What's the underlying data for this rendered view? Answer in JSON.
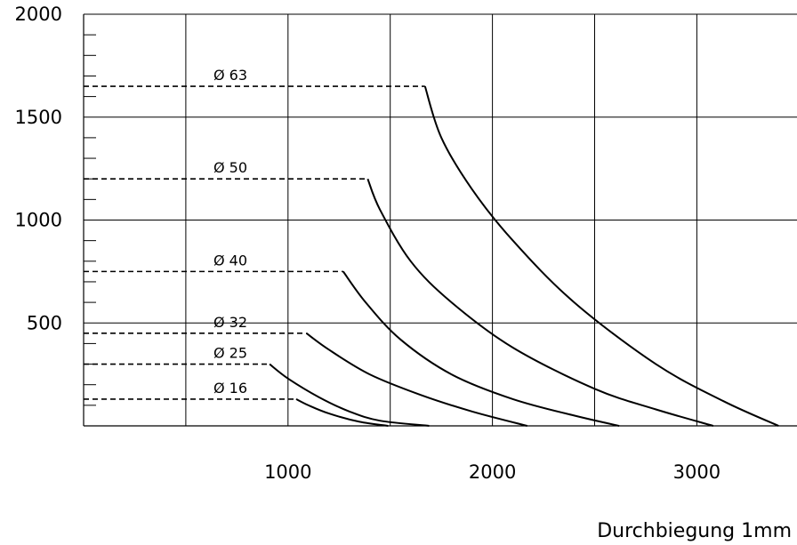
{
  "chart_data": {
    "type": "line",
    "xlabel": "Durchbiegung 1mm",
    "ylabel": "",
    "xlim": [
      0,
      3400
    ],
    "ylim": [
      0,
      2000
    ],
    "grid": true,
    "x_ticks": [
      {
        "value": 1000,
        "label": "1000"
      },
      {
        "value": 2000,
        "label": "2000"
      },
      {
        "value": 3000,
        "label": "3000"
      }
    ],
    "x_gridlines": [
      500,
      1000,
      1500,
      2000,
      2500,
      3000
    ],
    "y_ticks": [
      {
        "value": 500,
        "label": "500"
      },
      {
        "value": 1000,
        "label": "1000"
      },
      {
        "value": 1500,
        "label": "1500"
      },
      {
        "value": 2000,
        "label": "2000"
      }
    ],
    "y_minor_ticks": [
      100,
      200,
      300,
      400,
      600,
      700,
      800,
      900,
      1100,
      1200,
      1300,
      1400,
      1600,
      1700,
      1800,
      1900
    ],
    "series": [
      {
        "name": "Ø 63",
        "level": 1650,
        "points": [
          [
            1670,
            1650
          ],
          [
            1750,
            1400
          ],
          [
            1900,
            1150
          ],
          [
            2100,
            900
          ],
          [
            2400,
            600
          ],
          [
            2800,
            300
          ],
          [
            3130,
            120
          ],
          [
            3400,
            0
          ]
        ]
      },
      {
        "name": "Ø 50",
        "level": 1200,
        "points": [
          [
            1390,
            1200
          ],
          [
            1450,
            1050
          ],
          [
            1600,
            800
          ],
          [
            1800,
            600
          ],
          [
            2100,
            380
          ],
          [
            2500,
            180
          ],
          [
            2800,
            80
          ],
          [
            3080,
            0
          ]
        ]
      },
      {
        "name": "Ø 40",
        "level": 750,
        "points": [
          [
            1270,
            750
          ],
          [
            1380,
            600
          ],
          [
            1550,
            420
          ],
          [
            1800,
            250
          ],
          [
            2100,
            130
          ],
          [
            2400,
            50
          ],
          [
            2620,
            0
          ]
        ]
      },
      {
        "name": "Ø 32",
        "level": 450,
        "points": [
          [
            1090,
            450
          ],
          [
            1200,
            370
          ],
          [
            1400,
            250
          ],
          [
            1650,
            150
          ],
          [
            1900,
            70
          ],
          [
            2170,
            0
          ]
        ]
      },
      {
        "name": "Ø 25",
        "level": 300,
        "points": [
          [
            910,
            300
          ],
          [
            1000,
            230
          ],
          [
            1150,
            140
          ],
          [
            1300,
            70
          ],
          [
            1450,
            25
          ],
          [
            1690,
            0
          ]
        ]
      },
      {
        "name": "Ø 16",
        "level": 130,
        "points": [
          [
            1040,
            130
          ],
          [
            1100,
            100
          ],
          [
            1200,
            60
          ],
          [
            1350,
            20
          ],
          [
            1490,
            0
          ]
        ]
      }
    ]
  }
}
